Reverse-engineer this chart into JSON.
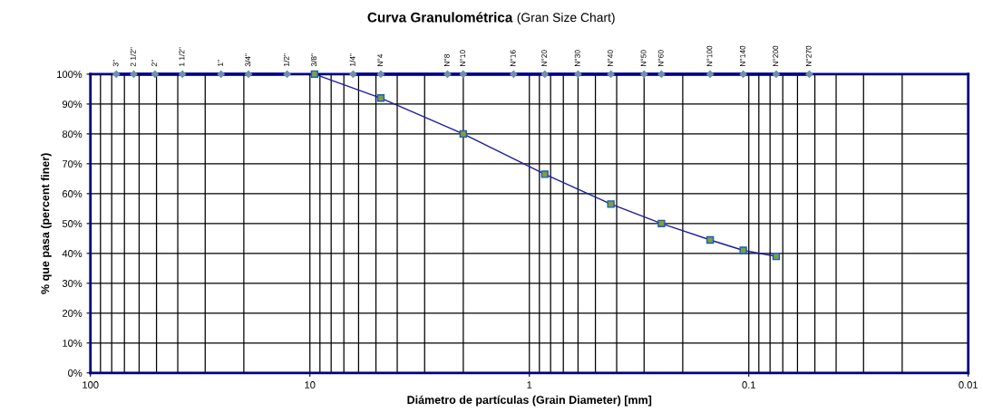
{
  "chart_data": {
    "type": "line",
    "title": "Curva Granulométrica",
    "subtitle": "(Gran Size Chart)",
    "xlabel": "Diámetro de partículas (Grain Diameter) [mm]",
    "ylabel": "% que pasa (percent finer)",
    "log": "x",
    "xlim": [
      100,
      0.01
    ],
    "xticks": [
      100,
      10,
      1,
      0.1,
      0.01
    ],
    "ylim": [
      0,
      100
    ],
    "yticks": [
      {
        "value": 0,
        "label": "0%"
      },
      {
        "value": 10,
        "label": "10%"
      },
      {
        "value": 20,
        "label": "20%"
      },
      {
        "value": 30,
        "label": "30%"
      },
      {
        "value": 40,
        "label": "40%"
      },
      {
        "value": 50,
        "label": "50%"
      },
      {
        "value": 60,
        "label": "60%"
      },
      {
        "value": 70,
        "label": "70%"
      },
      {
        "value": 80,
        "label": "80%"
      },
      {
        "value": 90,
        "label": "90%"
      },
      {
        "value": 100,
        "label": "100%"
      }
    ],
    "grid": true,
    "legend": false,
    "series": [
      {
        "color": "#000080",
        "marker": "diamond",
        "x": [
          76.2,
          63.5,
          50.8,
          38.1,
          25.4,
          19.05,
          12.7,
          9.525,
          6.35,
          4.75,
          2.36,
          2.0,
          1.18,
          0.85,
          0.6,
          0.425,
          0.3,
          0.25,
          0.15,
          0.106,
          0.075,
          0.053
        ],
        "values": [
          100,
          100,
          100,
          100,
          100,
          100,
          100,
          null,
          100,
          100,
          100,
          100,
          100,
          100,
          100,
          100,
          100,
          100,
          100,
          100,
          100,
          100
        ]
      },
      {
        "color": "#1c1ca0",
        "marker": "square",
        "x": [
          9.525,
          4.75,
          2.0,
          0.85,
          0.425,
          0.25,
          0.15,
          0.106,
          0.075
        ],
        "values": [
          100,
          92,
          80,
          66.5,
          56.5,
          50,
          44.5,
          41,
          39
        ]
      }
    ],
    "annotations": [
      {
        "text": "3\"",
        "x": 76.2,
        "y": 100
      },
      {
        "text": "2 1/2\"",
        "x": 63.5,
        "y": 100
      },
      {
        "text": "2\"",
        "x": 50.8,
        "y": 100
      },
      {
        "text": "1 1/2\"",
        "x": 38.1,
        "y": 100
      },
      {
        "text": "1\"",
        "x": 25.4,
        "y": 100
      },
      {
        "text": "3/4\"",
        "x": 19.05,
        "y": 100
      },
      {
        "text": "1/2\"",
        "x": 12.7,
        "y": 100
      },
      {
        "text": "3/8\"",
        "x": 9.525,
        "y": 100
      },
      {
        "text": "1/4\"",
        "x": 6.35,
        "y": 100
      },
      {
        "text": "N°4",
        "x": 4.75,
        "y": 100
      },
      {
        "text": "N°8",
        "x": 2.36,
        "y": 100
      },
      {
        "text": "N°10",
        "x": 2.0,
        "y": 100
      },
      {
        "text": "N°16",
        "x": 1.18,
        "y": 100
      },
      {
        "text": "N°20",
        "x": 0.85,
        "y": 100
      },
      {
        "text": "N°30",
        "x": 0.6,
        "y": 100
      },
      {
        "text": "N°40",
        "x": 0.425,
        "y": 100
      },
      {
        "text": "N°50",
        "x": 0.3,
        "y": 100
      },
      {
        "text": "N°60",
        "x": 0.25,
        "y": 100
      },
      {
        "text": "N°100",
        "x": 0.15,
        "y": 100
      },
      {
        "text": "N°140",
        "x": 0.106,
        "y": 100
      },
      {
        "text": "N°200",
        "x": 0.075,
        "y": 100
      },
      {
        "text": "N°270",
        "x": 0.053,
        "y": 100
      }
    ]
  }
}
